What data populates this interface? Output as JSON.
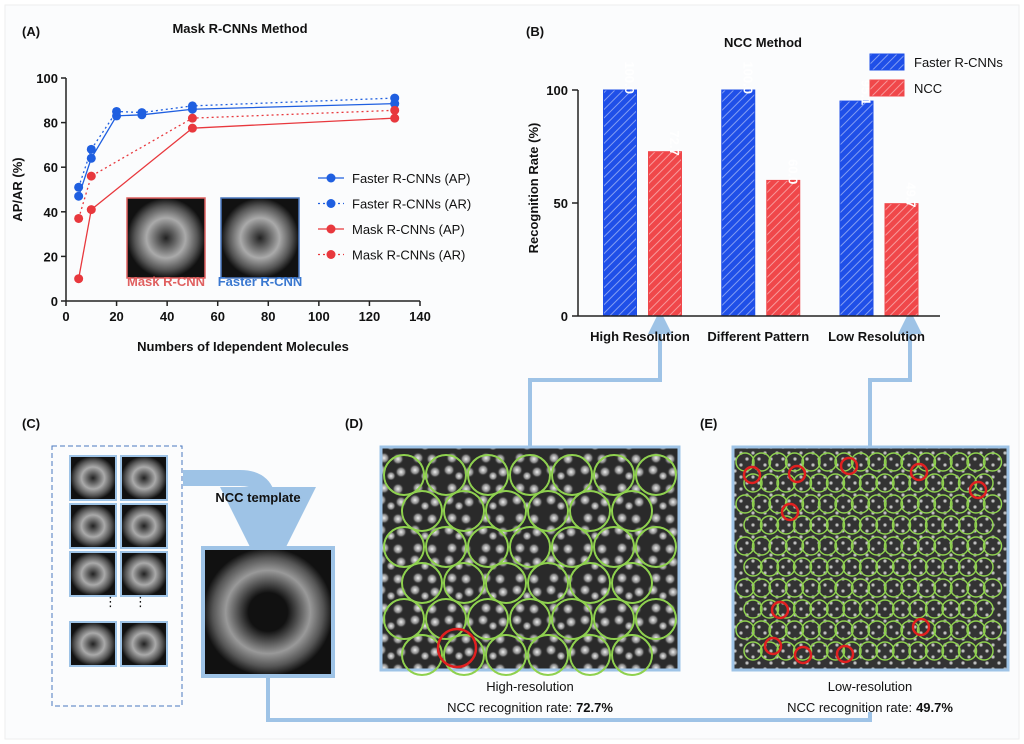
{
  "chart_data": [
    {
      "type": "line",
      "title": "Mask R-CNNs Method",
      "panel_label": "(A)",
      "xlabel": "Numbers of Idependent Molecules",
      "ylabel": "AP/AR (%)",
      "xlim": [
        0,
        140
      ],
      "xticks": [
        0,
        20,
        40,
        60,
        80,
        100,
        120,
        140
      ],
      "ylim": [
        0,
        100
      ],
      "yticks": [
        0,
        20,
        40,
        60,
        80,
        100
      ],
      "legend": "center right",
      "inset_labels": [
        "Mask R-CNN",
        "Faster R-CNN"
      ],
      "series": [
        {
          "name": "Faster R-CNNs (AP)",
          "color": "#1f5fe0",
          "linestyle": "solid",
          "x": [
            5,
            10,
            20,
            30,
            50,
            130
          ],
          "values": [
            47,
            64,
            83,
            83.5,
            86,
            88.5
          ]
        },
        {
          "name": "Faster R-CNNs (AR)",
          "color": "#1f5fe0",
          "linestyle": "dotted",
          "x": [
            5,
            10,
            20,
            30,
            50,
            130
          ],
          "values": [
            51,
            68,
            85,
            84.5,
            87.5,
            91
          ]
        },
        {
          "name": "Mask R-CNNs (AP)",
          "color": "#e8383d",
          "linestyle": "solid",
          "x": [
            5,
            10,
            50,
            130
          ],
          "values": [
            10,
            41,
            77.5,
            82
          ]
        },
        {
          "name": "Mask R-CNNs (AR)",
          "color": "#e8383d",
          "linestyle": "dotted",
          "x": [
            5,
            10,
            50,
            130
          ],
          "values": [
            37,
            56,
            82,
            85.5
          ]
        }
      ]
    },
    {
      "type": "bar",
      "title": "NCC Method",
      "panel_label": "(B)",
      "ylabel": "Recognition Rate (%)",
      "categories": [
        "High Resolution",
        "Different Pattern",
        "Low Resolution"
      ],
      "ylim": [
        0,
        100
      ],
      "yticks": [
        0,
        50,
        100
      ],
      "legend": "upper right",
      "hatch": true,
      "series": [
        {
          "name": "Faster R-CNNs",
          "color": "#1f4fe8",
          "values": [
            100,
            100,
            95.1
          ],
          "value_labels": [
            "100.0",
            "100.0",
            "95.1"
          ]
        },
        {
          "name": "NCC",
          "color": "#f0474a",
          "values": [
            72.7,
            60,
            49.7
          ],
          "value_labels": [
            "72.7",
            "60.0",
            "49.7"
          ]
        }
      ]
    }
  ],
  "panels": {
    "c": {
      "label": "(C)",
      "template_label": "NCC template"
    },
    "d": {
      "label": "(D)",
      "caption": "High-resolution",
      "rate_label": "NCC recognition rate:",
      "rate": "72.7%"
    },
    "e": {
      "label": "(E)",
      "caption": "Low-resolution",
      "rate_label": "NCC recognition rate:",
      "rate": "49.7%"
    }
  }
}
